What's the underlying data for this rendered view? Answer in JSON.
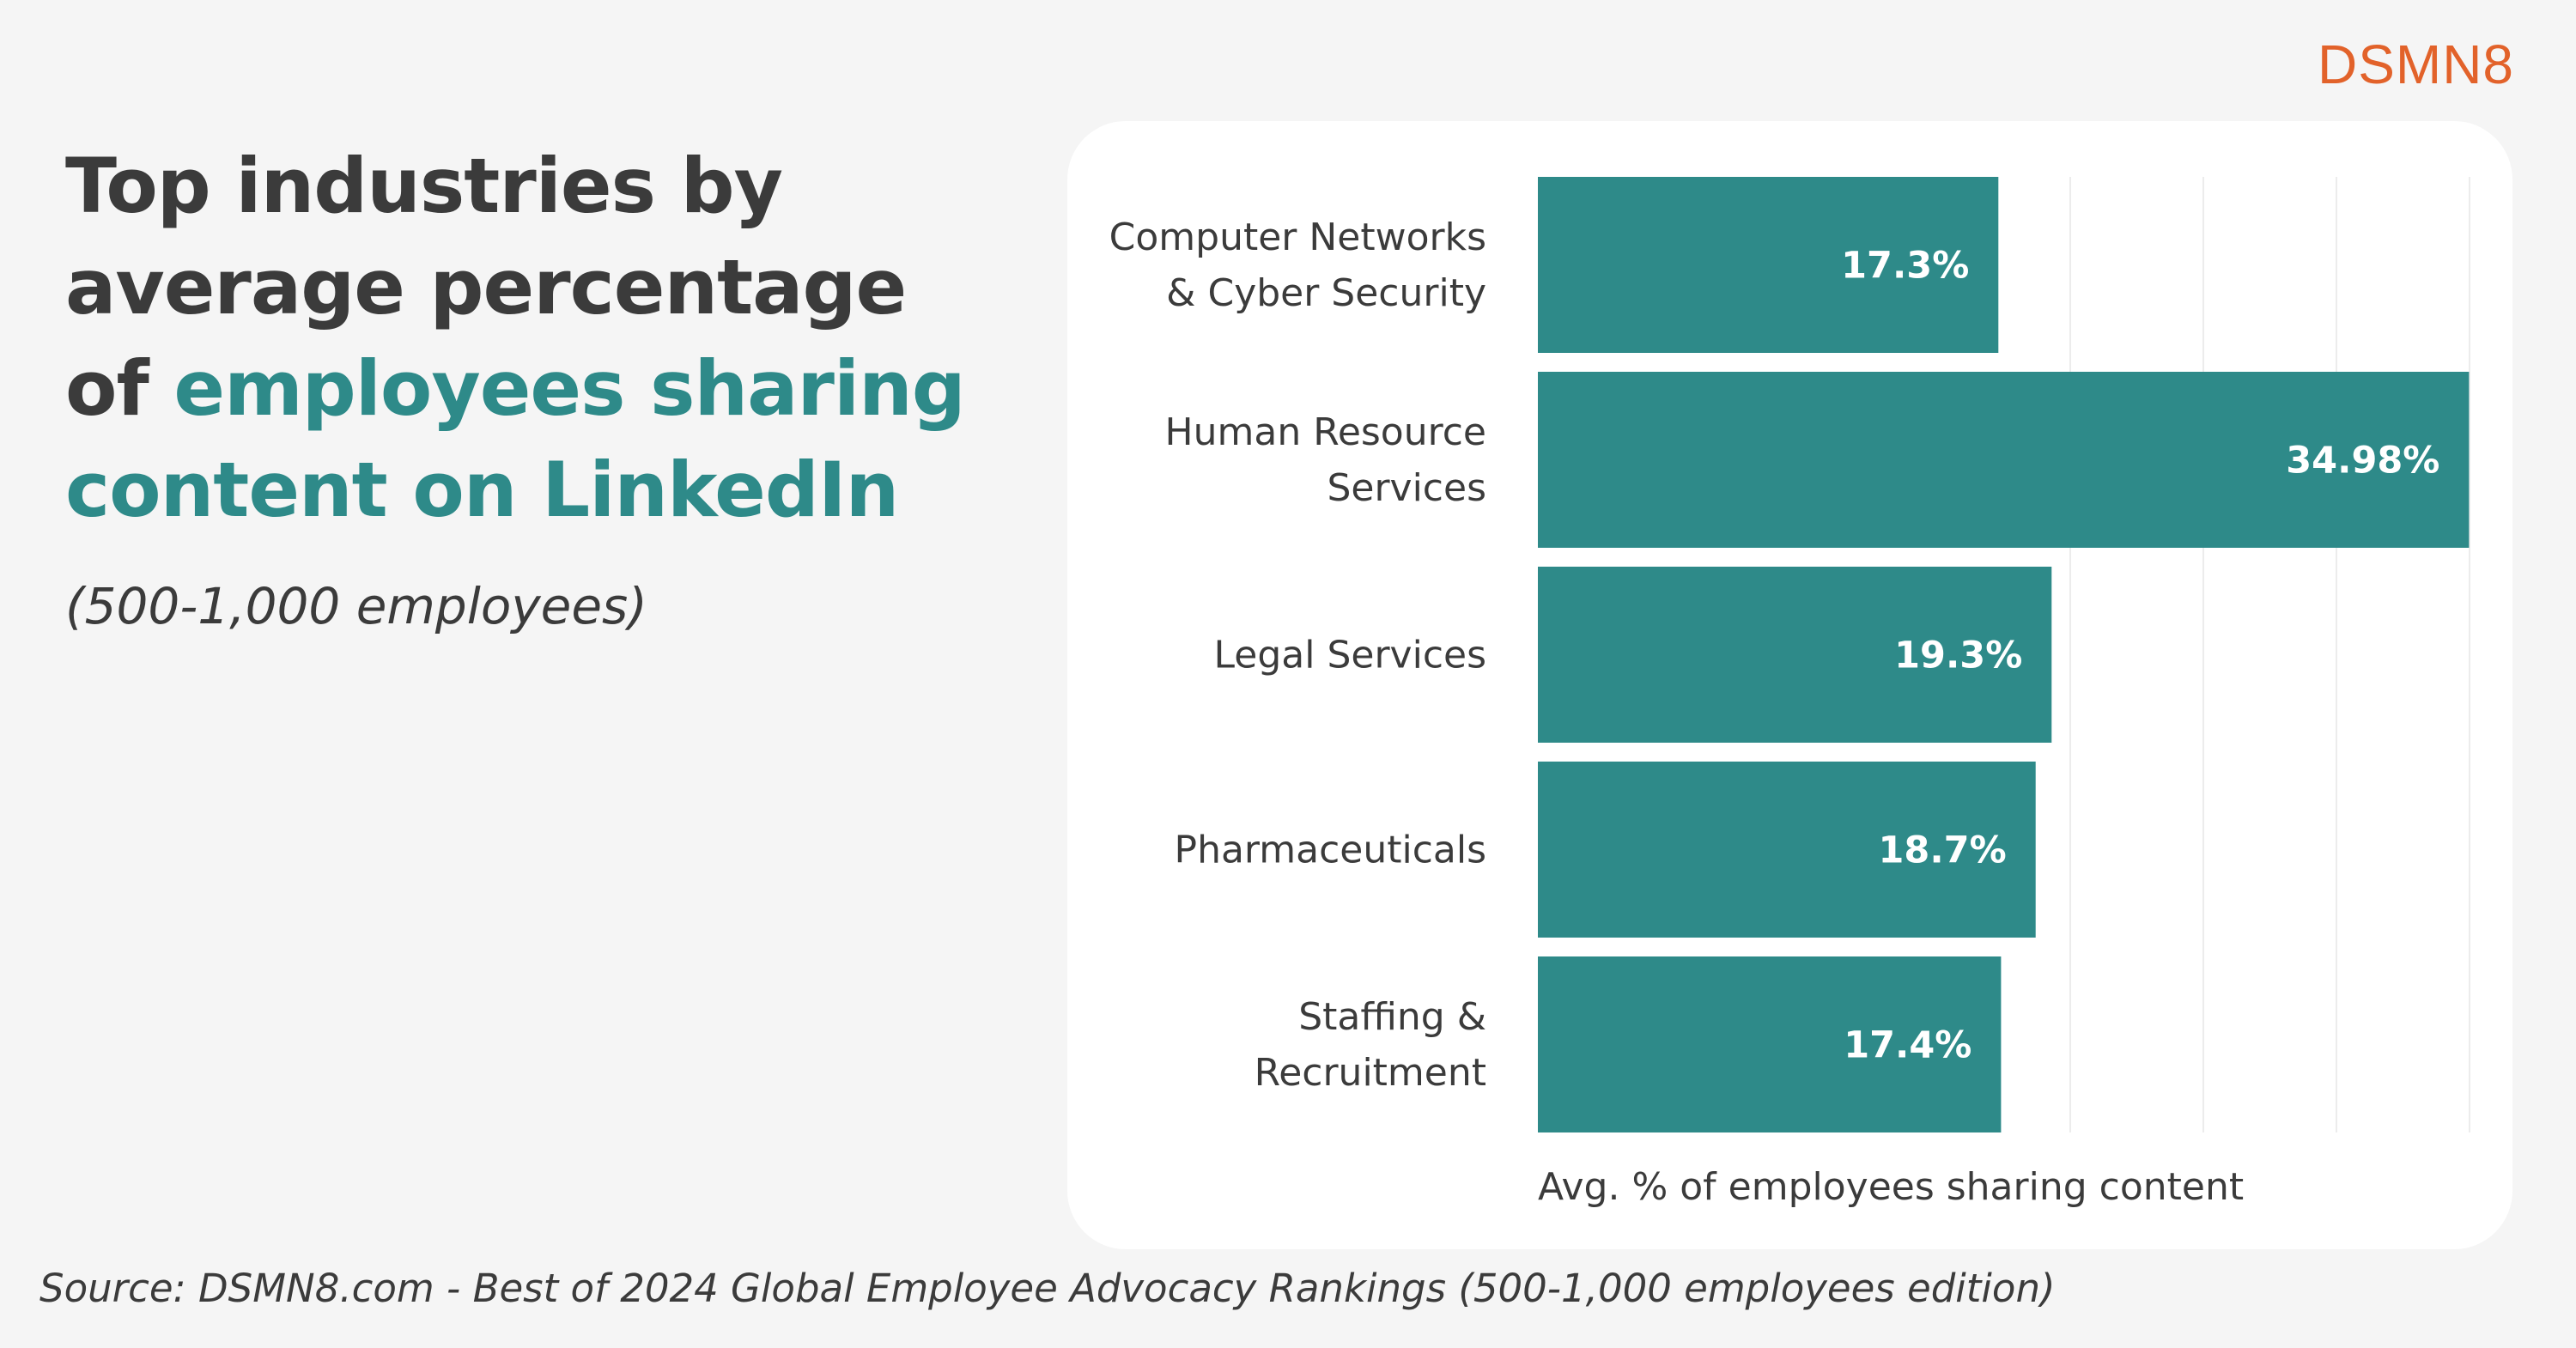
{
  "brand": {
    "logo_text": "DSMN8",
    "logo_color": "#e2622a"
  },
  "heading": {
    "title_line1": "Top industries by",
    "title_line2": "average percentage",
    "title_line3_prefix": "of ",
    "title_line3_highlight": "employees sharing",
    "title_line4_highlight": "content on LinkedIn",
    "subtitle": "(500-1,000 employees)",
    "text_color": "#3b3b3b",
    "accent_color": "#2e8a89"
  },
  "chart_data": {
    "type": "bar",
    "orientation": "horizontal",
    "categories": [
      [
        "Computer Networks",
        "& Cyber Security"
      ],
      [
        "Human Resource",
        "Services"
      ],
      [
        "Legal Services"
      ],
      [
        "Pharmaceuticals"
      ],
      [
        "Staffing &",
        "Recruitment"
      ]
    ],
    "values": [
      17.3,
      34.98,
      19.3,
      18.7,
      17.4
    ],
    "data_labels": [
      "17.3%",
      "34.98%",
      "19.3%",
      "18.7%",
      "17.4%"
    ],
    "xlabel": "Avg. % of employees sharing content",
    "xlim": [
      0,
      35
    ],
    "vertical_gridlines": [
      20,
      25,
      30,
      35
    ],
    "grid": true,
    "legend": "none",
    "bar_color": "#2e8a89",
    "label_color": "#ffffff"
  },
  "footer": {
    "source": "Source: DSMN8.com - Best of 2024 Global Employee Advocacy Rankings (500-1,000 employees edition)"
  }
}
